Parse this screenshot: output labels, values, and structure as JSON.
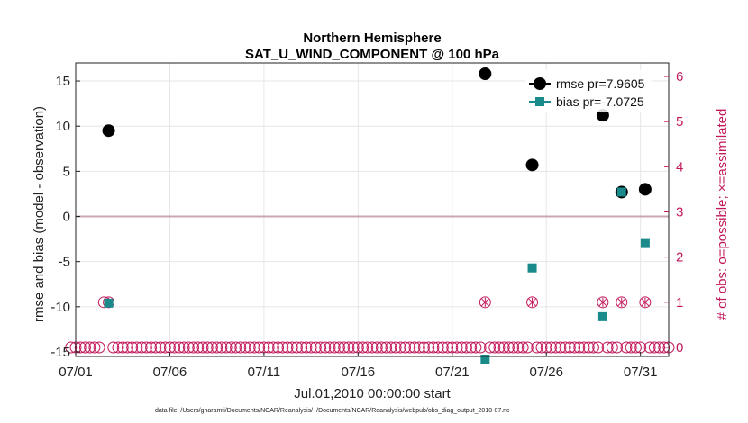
{
  "chart_data": {
    "type": "scatter",
    "title": "Northern Hemisphere",
    "subtitle": "SAT_U_WIND_COMPONENT @ 100 hPa",
    "xlabel": "Jul.01,2010 00:00:00 start",
    "ylabel_left": "rmse and bias (model - observation)",
    "ylabel_right": "# of obs: o=possible; ×=assimilated",
    "footnote": "data file: /Users/gharamti/Documents/NCAR/Reanalysis/~/Documents/NCAR/Reanalysis/webpub/obs_diag_output_2010-07.nc",
    "xlim": [
      0,
      31.5
    ],
    "ylim_left": [
      -15.5,
      17
    ],
    "ylim_right": [
      -0.2,
      6.3
    ],
    "x_ticks": [
      {
        "x": 0,
        "label": "07/01"
      },
      {
        "x": 5,
        "label": "07/06"
      },
      {
        "x": 10,
        "label": "07/11"
      },
      {
        "x": 15,
        "label": "07/16"
      },
      {
        "x": 20,
        "label": "07/21"
      },
      {
        "x": 25,
        "label": "07/26"
      },
      {
        "x": 30,
        "label": "07/31"
      }
    ],
    "y_ticks_left": [
      -15,
      -10,
      -5,
      0,
      5,
      10,
      15
    ],
    "y_ticks_right": [
      0,
      1,
      2,
      3,
      4,
      5,
      6
    ],
    "grid": true,
    "zero_line": true,
    "legend_position": "top-right",
    "colors": {
      "rmse": "#000000",
      "bias": "#1a8a8a",
      "obs": "#c2185b",
      "zero_line": "#c9a6b2",
      "grid": "#e6e6e6"
    },
    "series": [
      {
        "name": "rmse pr=7.9605",
        "axis": "left",
        "marker": "circle",
        "points": [
          {
            "x": 1.75,
            "y": 9.5
          },
          {
            "x": 21.75,
            "y": 15.8
          },
          {
            "x": 24.25,
            "y": 5.7
          },
          {
            "x": 28.0,
            "y": 11.2
          },
          {
            "x": 29.0,
            "y": 2.7
          },
          {
            "x": 30.25,
            "y": 3.0
          }
        ]
      },
      {
        "name": "bias pr=-7.0725",
        "axis": "left",
        "marker": "square",
        "points": [
          {
            "x": 1.75,
            "y": -9.6
          },
          {
            "x": 21.75,
            "y": -15.8
          },
          {
            "x": 24.25,
            "y": -5.7
          },
          {
            "x": 28.0,
            "y": -11.1
          },
          {
            "x": 29.0,
            "y": 2.7
          },
          {
            "x": 30.25,
            "y": -3.0
          }
        ]
      },
      {
        "name": "obs possible (o) / assimilated (×)",
        "axis": "right",
        "marker": "circle-x",
        "step": 0.25,
        "start": -0.25,
        "end": 31.5,
        "nonzero_points": [
          {
            "x": 1.5,
            "y": 1
          },
          {
            "x": 1.75,
            "y": 1
          },
          {
            "x": 21.75,
            "y": 1
          },
          {
            "x": 24.25,
            "y": 1
          },
          {
            "x": 28.0,
            "y": 1
          },
          {
            "x": 29.0,
            "y": 1
          },
          {
            "x": 30.25,
            "y": 1
          }
        ]
      }
    ]
  }
}
